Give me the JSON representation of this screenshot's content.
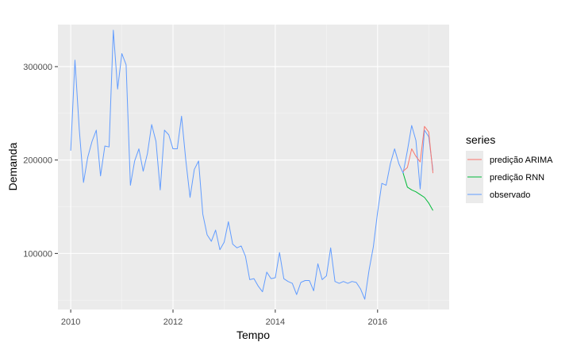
{
  "chart_data": {
    "type": "line",
    "title": "",
    "xlabel": "Tempo",
    "ylabel": "Demanda",
    "xlim": [
      2009.75,
      2017.4
    ],
    "ylim": [
      40000,
      345000
    ],
    "x_ticks": [
      2010,
      2012,
      2014,
      2016
    ],
    "x_tick_labels": [
      "2010",
      "2012",
      "2014",
      "2016"
    ],
    "y_ticks": [
      100000,
      200000,
      300000
    ],
    "y_tick_labels": [
      "100000",
      "200000",
      "300000"
    ],
    "grid": true,
    "panel_background": "#ebebeb",
    "legend": {
      "title": "series",
      "position": "right"
    },
    "series": [
      {
        "name": "predição ARIMA",
        "color": "#f8766d",
        "x": [
          2016.5,
          2016.583,
          2016.667,
          2016.75,
          2016.833,
          2016.917,
          2017.0,
          2017.083
        ],
        "y": [
          188000,
          192000,
          212000,
          204000,
          198000,
          236000,
          230000,
          186000
        ]
      },
      {
        "name": "predição RNN",
        "color": "#00ba38",
        "x": [
          2016.5,
          2016.583,
          2016.667,
          2016.75,
          2016.833,
          2016.917,
          2017.0,
          2017.083
        ],
        "y": [
          186000,
          171000,
          168000,
          166000,
          163000,
          160000,
          154000,
          146000
        ]
      },
      {
        "name": "observado",
        "color": "#619cff",
        "x": [
          2010.0,
          2010.083,
          2010.167,
          2010.25,
          2010.333,
          2010.417,
          2010.5,
          2010.583,
          2010.667,
          2010.75,
          2010.833,
          2010.917,
          2011.0,
          2011.083,
          2011.167,
          2011.25,
          2011.333,
          2011.417,
          2011.5,
          2011.583,
          2011.667,
          2011.75,
          2011.833,
          2011.917,
          2012.0,
          2012.083,
          2012.167,
          2012.25,
          2012.333,
          2012.417,
          2012.5,
          2012.583,
          2012.667,
          2012.75,
          2012.833,
          2012.917,
          2013.0,
          2013.083,
          2013.167,
          2013.25,
          2013.333,
          2013.417,
          2013.5,
          2013.583,
          2013.667,
          2013.75,
          2013.833,
          2013.917,
          2014.0,
          2014.083,
          2014.167,
          2014.25,
          2014.333,
          2014.417,
          2014.5,
          2014.583,
          2014.667,
          2014.75,
          2014.833,
          2014.917,
          2015.0,
          2015.083,
          2015.167,
          2015.25,
          2015.333,
          2015.417,
          2015.5,
          2015.583,
          2015.667,
          2015.75,
          2015.833,
          2015.917,
          2016.0,
          2016.083,
          2016.167,
          2016.25,
          2016.333,
          2016.417,
          2016.5,
          2016.583,
          2016.667,
          2016.75,
          2016.833,
          2016.917,
          2017.0,
          2017.083
        ],
        "y": [
          210000,
          307000,
          233000,
          176000,
          203000,
          220000,
          232000,
          183000,
          215000,
          214000,
          339000,
          276000,
          314000,
          302000,
          173000,
          199000,
          212000,
          188000,
          207000,
          238000,
          220000,
          168000,
          232000,
          227000,
          212000,
          212000,
          247000,
          200000,
          160000,
          190000,
          199000,
          142000,
          120000,
          113000,
          125000,
          104000,
          112000,
          134000,
          110000,
          106000,
          108000,
          97000,
          72000,
          73000,
          65000,
          59000,
          80000,
          73000,
          74000,
          101000,
          73000,
          70000,
          68000,
          56000,
          69000,
          71000,
          71000,
          60000,
          89000,
          72000,
          76000,
          106000,
          70000,
          68000,
          70000,
          68000,
          70000,
          69000,
          62000,
          51000,
          82000,
          107000,
          144000,
          175000,
          173000,
          196000,
          212000,
          196000,
          186000,
          210000,
          237000,
          221000,
          169000,
          232000,
          225000,
          189000
        ]
      }
    ]
  }
}
